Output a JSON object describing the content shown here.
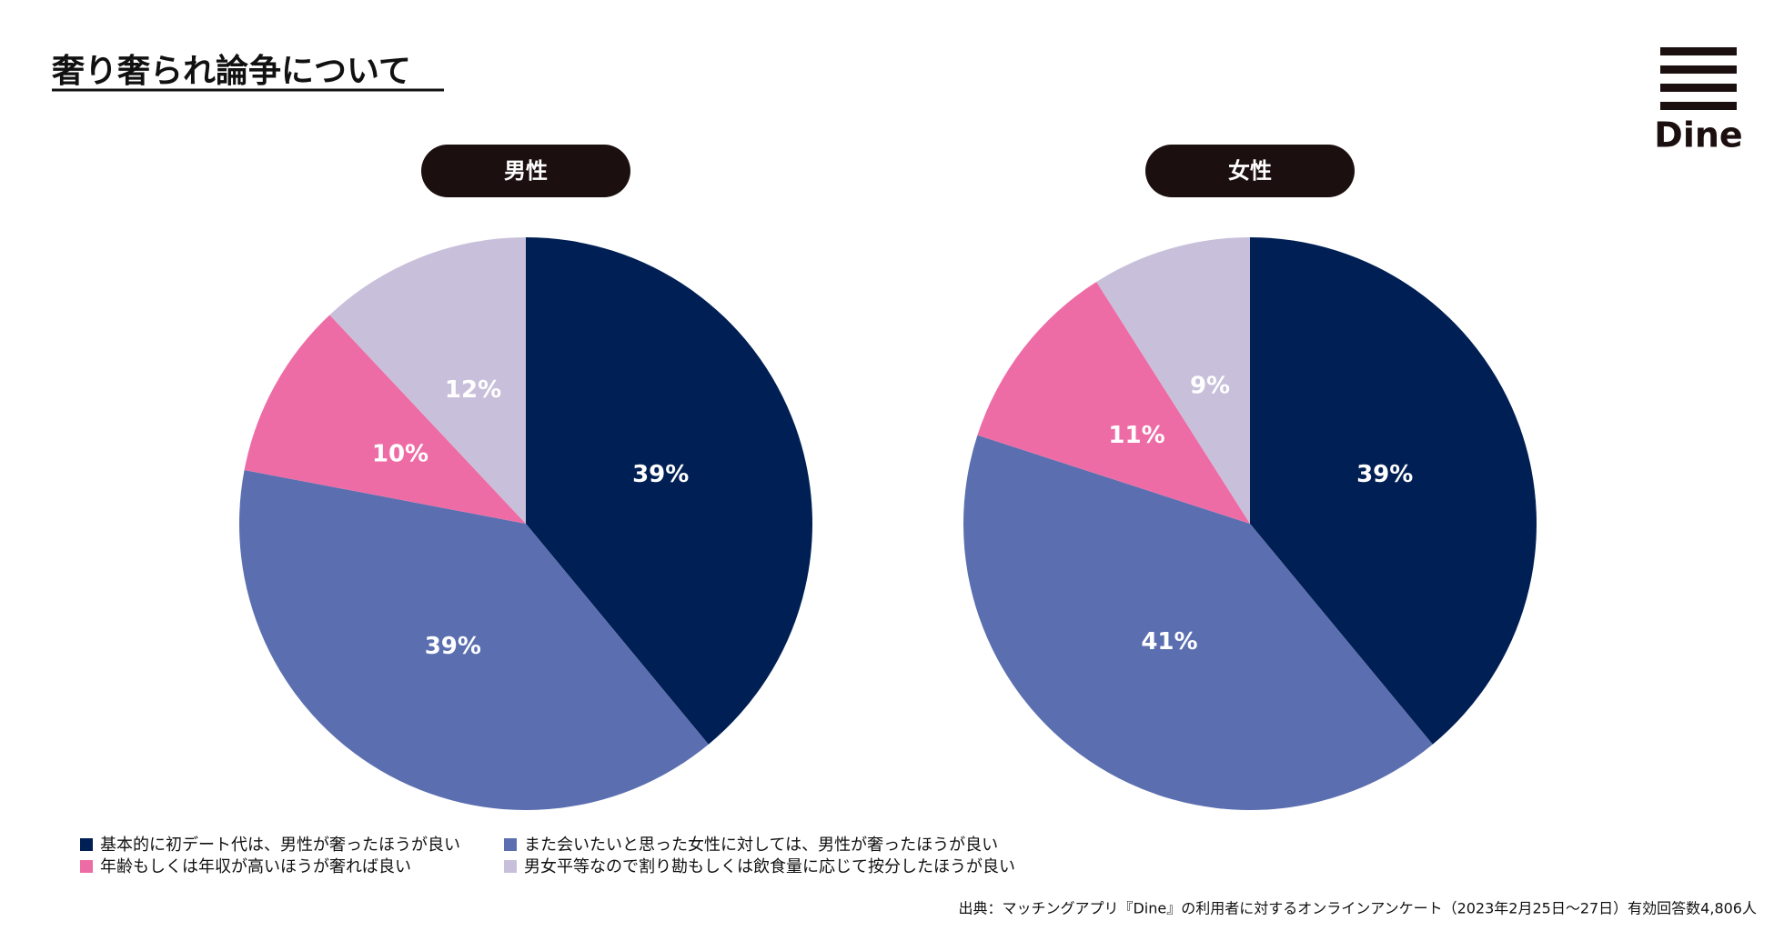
{
  "title": "奢り奢られ論争について",
  "logo": "Dine",
  "source": "出典：マッチングアプリ『Dine』の利用者に対するオンラインアンケート（2023年2月25日〜27日）有効回答数4,806人",
  "chart_data": [
    {
      "type": "pie",
      "title": "男性",
      "categories": [
        "基本的に初デート代は、男性が奢ったほうが良い",
        "また会いたいと思った女性に対しては、男性が奢ったほうが良い",
        "年齢もしくは年収が高いほうが奢れば良い",
        "男女平等なので割り勘もしくは飲食量に応じて按分したほうが良い"
      ],
      "values": [
        39,
        39,
        10,
        12
      ],
      "value_labels": [
        "39%",
        "39%",
        "10%",
        "12%"
      ],
      "colors": [
        "#001f54",
        "#5b6fb0",
        "#ee6ca5",
        "#c8c0da"
      ]
    },
    {
      "type": "pie",
      "title": "女性",
      "categories": [
        "基本的に初デート代は、男性が奢ったほうが良い",
        "また会いたいと思った女性に対しては、男性が奢ったほうが良い",
        "年齢もしくは年収が高いほうが奢れば良い",
        "男女平等なので割り勘もしくは飲食量に応じて按分したほうが良い"
      ],
      "values": [
        39,
        41,
        11,
        9
      ],
      "value_labels": [
        "39%",
        "41%",
        "11%",
        "9%"
      ],
      "colors": [
        "#001f54",
        "#5b6fb0",
        "#ee6ca5",
        "#c8c0da"
      ]
    }
  ]
}
